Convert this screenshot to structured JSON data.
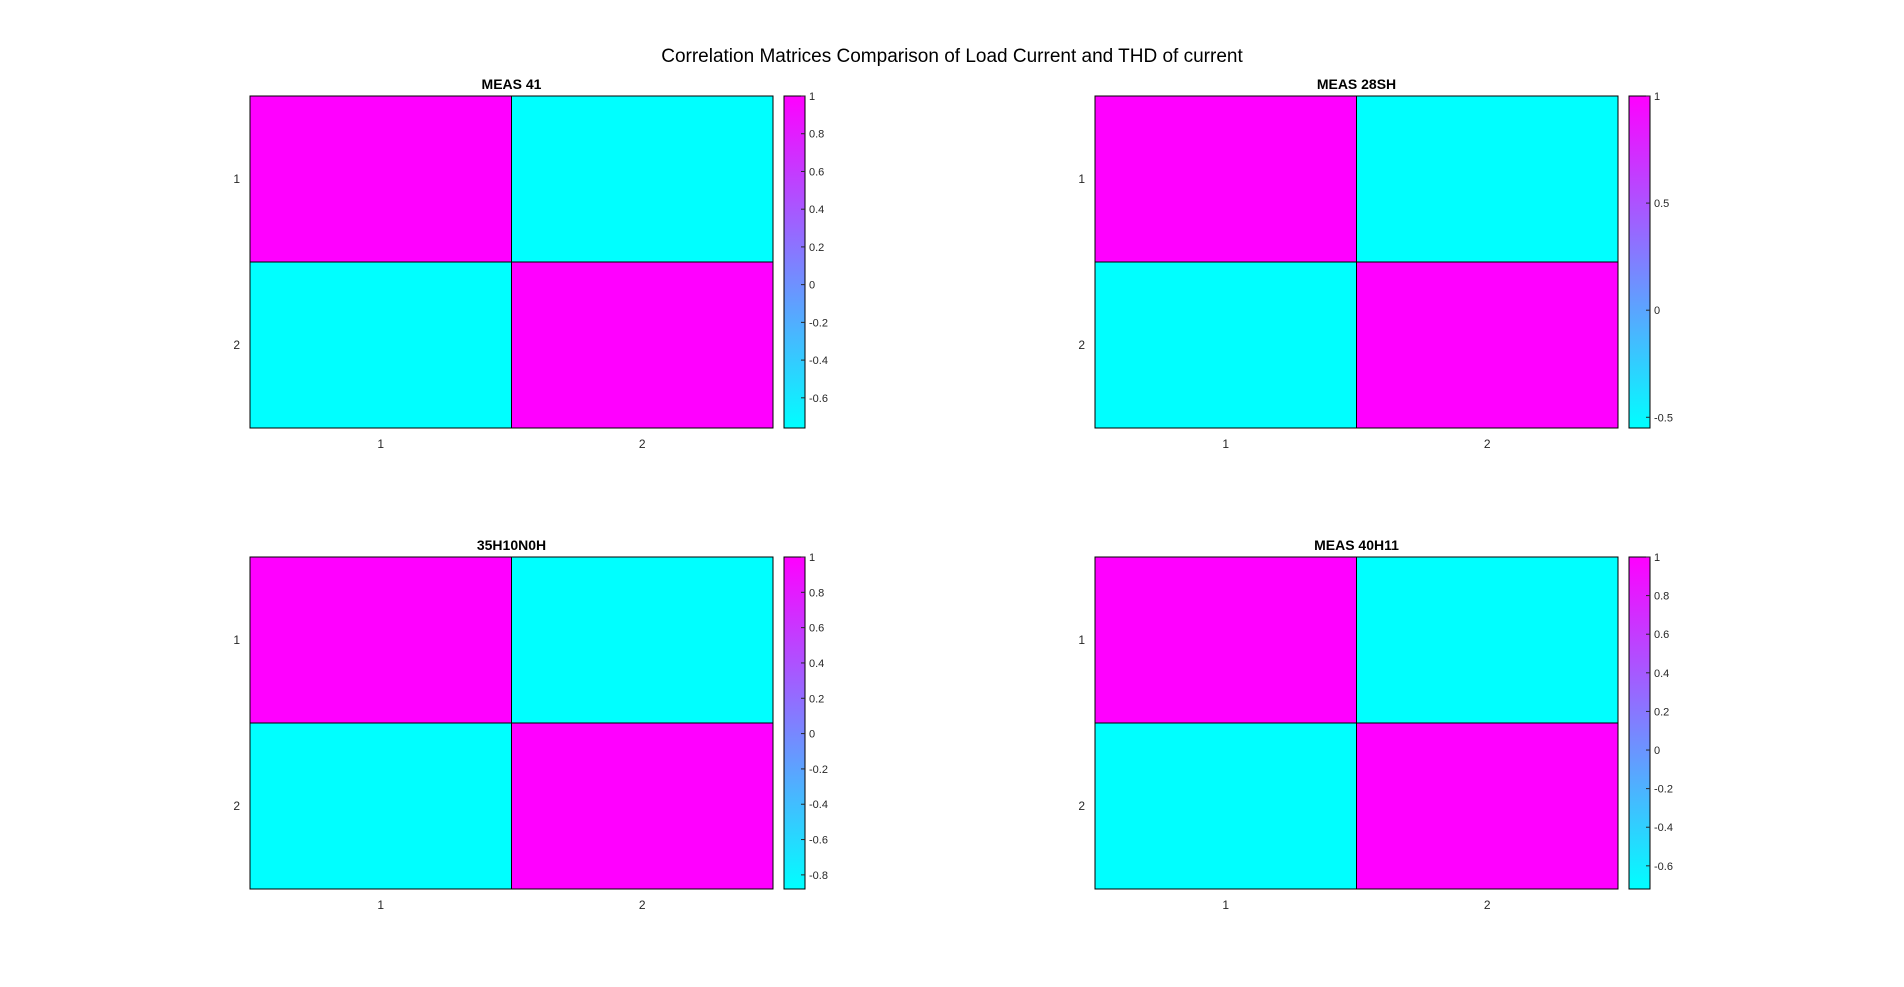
{
  "figure_title": "Correlation Matrices Comparison of Load Current and THD of current",
  "colors": {
    "low": "#00ffff",
    "high": "#ff00ff",
    "edge": "#000000"
  },
  "chart_data": [
    {
      "type": "heatmap",
      "title": "MEAS 41",
      "x_ticks": [
        "1",
        "2"
      ],
      "y_ticks": [
        "1",
        "2"
      ],
      "matrix": [
        [
          1,
          -0.76
        ],
        [
          -0.76,
          1
        ]
      ],
      "colorbar": {
        "min": -0.76,
        "max": 1,
        "ticks": [
          1,
          0.8,
          0.6,
          0.4,
          0.2,
          0,
          -0.2,
          -0.4,
          -0.6
        ],
        "tick_labels": [
          "1",
          "0.8",
          "0.6",
          "0.4",
          "0.2",
          "0",
          "-0.2",
          "-0.4",
          "-0.6"
        ]
      }
    },
    {
      "type": "heatmap",
      "title": "MEAS 28SH",
      "x_ticks": [
        "1",
        "2"
      ],
      "y_ticks": [
        "1",
        "2"
      ],
      "matrix": [
        [
          1,
          -0.55
        ],
        [
          -0.55,
          1
        ]
      ],
      "colorbar": {
        "min": -0.55,
        "max": 1,
        "ticks": [
          1,
          0.5,
          0,
          -0.5
        ],
        "tick_labels": [
          "1",
          "0.5",
          "0",
          "-0.5"
        ]
      }
    },
    {
      "type": "heatmap",
      "title": "35H10N0H",
      "x_ticks": [
        "1",
        "2"
      ],
      "y_ticks": [
        "1",
        "2"
      ],
      "matrix": [
        [
          1,
          -0.88
        ],
        [
          -0.88,
          1
        ]
      ],
      "colorbar": {
        "min": -0.88,
        "max": 1,
        "ticks": [
          1,
          0.8,
          0.6,
          0.4,
          0.2,
          0,
          -0.2,
          -0.4,
          -0.6,
          -0.8
        ],
        "tick_labels": [
          "1",
          "0.8",
          "0.6",
          "0.4",
          "0.2",
          "0",
          "-0.2",
          "-0.4",
          "-0.6",
          "-0.8"
        ]
      }
    },
    {
      "type": "heatmap",
      "title": "MEAS 40H11",
      "x_ticks": [
        "1",
        "2"
      ],
      "y_ticks": [
        "1",
        "2"
      ],
      "matrix": [
        [
          1,
          -0.72
        ],
        [
          -0.72,
          1
        ]
      ],
      "colorbar": {
        "min": -0.72,
        "max": 1,
        "ticks": [
          1,
          0.8,
          0.6,
          0.4,
          0.2,
          0,
          -0.2,
          -0.4,
          -0.6
        ],
        "tick_labels": [
          "1",
          "0.8",
          "0.6",
          "0.4",
          "0.2",
          "0",
          "-0.2",
          "-0.4",
          "-0.6"
        ]
      }
    }
  ]
}
